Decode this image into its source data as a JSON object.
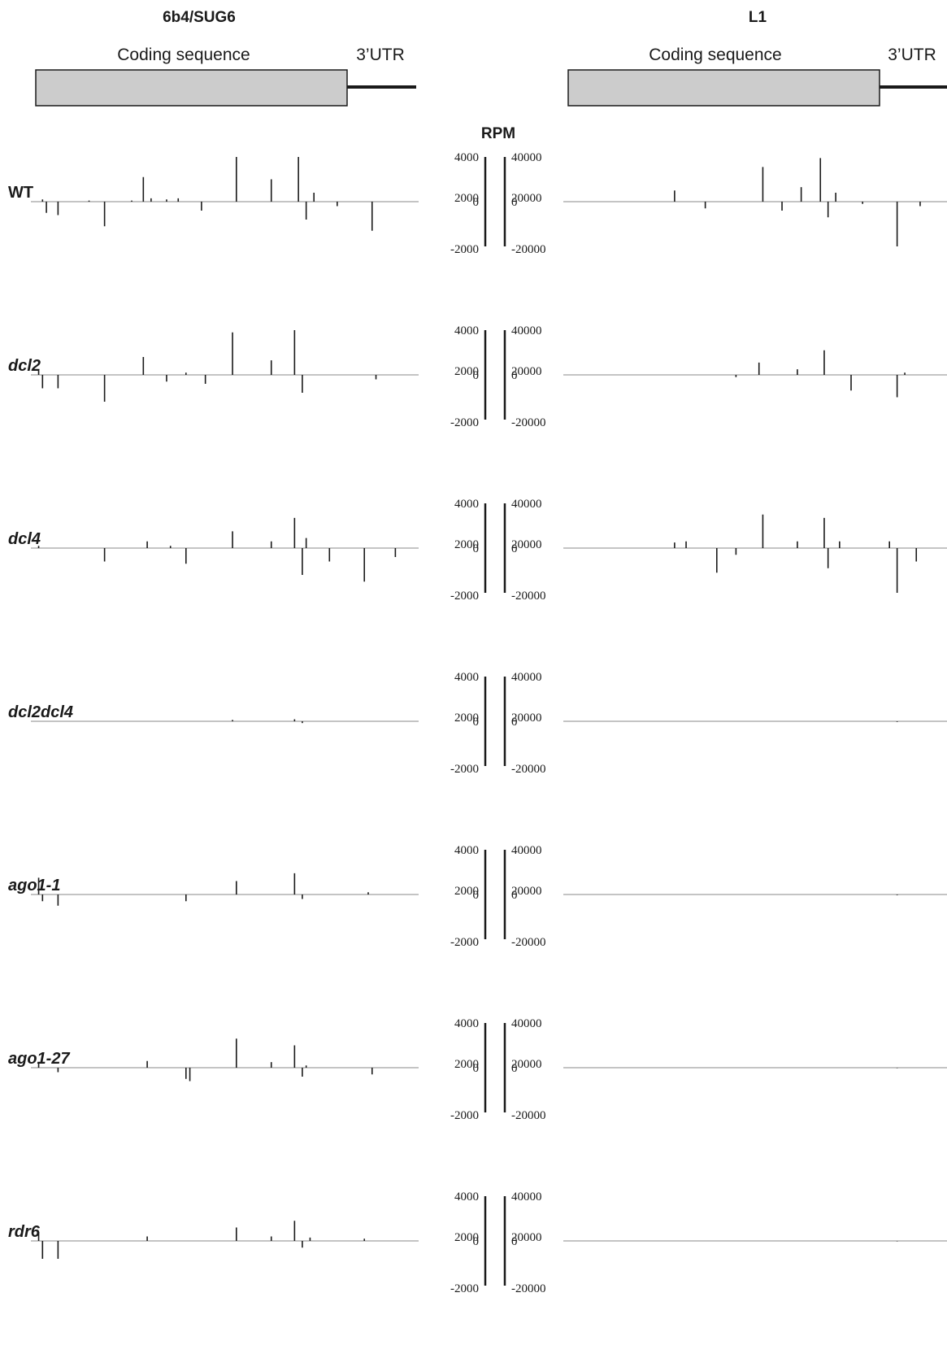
{
  "headers": {
    "left_gene": "6b4/SUG6",
    "right_gene": "L1",
    "cds_label": "Coding sequence",
    "utr_label": "3’UTR",
    "cds_fill": "#cccccc"
  },
  "rpm_label": "RPM",
  "left_axis_ticks": [
    "4000",
    "2000",
    "0",
    "-2000"
  ],
  "right_axis_ticks": [
    "40000",
    "20000",
    "0",
    "-20000"
  ],
  "chart_data": {
    "type": "bar",
    "x_unit": "position along transcript (fraction of panel width)",
    "y_unit": "RPM",
    "left_ylim": [
      -2000,
      4000
    ],
    "right_ylim": [
      -20000,
      40000
    ],
    "trace_color": "#1a1a1a",
    "baseline_color": "#888888",
    "samples": [
      {
        "name": "WT",
        "left": [
          [
            0.03,
            200
          ],
          [
            0.04,
            -500
          ],
          [
            0.07,
            -600
          ],
          [
            0.19,
            -1100
          ],
          [
            0.29,
            2200
          ],
          [
            0.31,
            300
          ],
          [
            0.35,
            200
          ],
          [
            0.38,
            300
          ],
          [
            0.44,
            -400
          ],
          [
            0.53,
            4000
          ],
          [
            0.62,
            2000
          ],
          [
            0.69,
            4000
          ],
          [
            0.71,
            -800
          ],
          [
            0.73,
            800
          ],
          [
            0.88,
            -1300
          ],
          [
            0.79,
            -200
          ],
          [
            0.15,
            100
          ],
          [
            0.26,
            100
          ]
        ],
        "right": [
          [
            0.29,
            10000
          ],
          [
            0.37,
            -3000
          ],
          [
            0.52,
            31000
          ],
          [
            0.57,
            -4000
          ],
          [
            0.62,
            13000
          ],
          [
            0.67,
            39000
          ],
          [
            0.69,
            -7000
          ],
          [
            0.71,
            8000
          ],
          [
            0.87,
            -20000
          ],
          [
            0.93,
            -2000
          ],
          [
            0.78,
            -1000
          ]
        ]
      },
      {
        "name": "dcl2",
        "left": [
          [
            0.02,
            400
          ],
          [
            0.03,
            -600
          ],
          [
            0.07,
            -600
          ],
          [
            0.19,
            -1200
          ],
          [
            0.29,
            1600
          ],
          [
            0.35,
            -300
          ],
          [
            0.45,
            -400
          ],
          [
            0.52,
            3800
          ],
          [
            0.62,
            1300
          ],
          [
            0.68,
            4000
          ],
          [
            0.7,
            -800
          ],
          [
            0.89,
            -200
          ],
          [
            0.4,
            200
          ]
        ],
        "right": [
          [
            0.51,
            11000
          ],
          [
            0.61,
            5000
          ],
          [
            0.68,
            22000
          ],
          [
            0.75,
            -7000
          ],
          [
            0.87,
            -10000
          ],
          [
            0.89,
            2000
          ],
          [
            0.45,
            -1000
          ]
        ]
      },
      {
        "name": "dcl4",
        "left": [
          [
            0.02,
            200
          ],
          [
            0.19,
            -600
          ],
          [
            0.3,
            600
          ],
          [
            0.4,
            -700
          ],
          [
            0.52,
            1500
          ],
          [
            0.62,
            600
          ],
          [
            0.68,
            2700
          ],
          [
            0.7,
            -1200
          ],
          [
            0.71,
            900
          ],
          [
            0.77,
            -600
          ],
          [
            0.86,
            -1500
          ],
          [
            0.94,
            -400
          ],
          [
            0.36,
            200
          ]
        ],
        "right": [
          [
            0.29,
            5000
          ],
          [
            0.32,
            6000
          ],
          [
            0.4,
            -11000
          ],
          [
            0.52,
            30000
          ],
          [
            0.61,
            6000
          ],
          [
            0.68,
            27000
          ],
          [
            0.69,
            -9000
          ],
          [
            0.72,
            6000
          ],
          [
            0.85,
            6000
          ],
          [
            0.87,
            -20000
          ],
          [
            0.92,
            -6000
          ],
          [
            0.45,
            -3000
          ]
        ]
      },
      {
        "name": "dcl2dcl4",
        "left": [
          [
            0.52,
            120
          ],
          [
            0.68,
            180
          ],
          [
            0.7,
            -80
          ]
        ],
        "right": [
          [
            0.87,
            -300
          ]
        ]
      },
      {
        "name": "ago1-1",
        "left": [
          [
            0.02,
            1500
          ],
          [
            0.03,
            -300
          ],
          [
            0.07,
            -500
          ],
          [
            0.4,
            -300
          ],
          [
            0.53,
            1200
          ],
          [
            0.68,
            1900
          ],
          [
            0.7,
            -200
          ],
          [
            0.87,
            200
          ]
        ],
        "right": [
          [
            0.87,
            -300
          ]
        ]
      },
      {
        "name": "ago1-27",
        "left": [
          [
            0.02,
            400
          ],
          [
            0.07,
            -200
          ],
          [
            0.3,
            600
          ],
          [
            0.4,
            -500
          ],
          [
            0.41,
            -600
          ],
          [
            0.53,
            2600
          ],
          [
            0.62,
            500
          ],
          [
            0.68,
            2000
          ],
          [
            0.7,
            -400
          ],
          [
            0.71,
            200
          ],
          [
            0.88,
            -300
          ]
        ],
        "right": [
          [
            0.87,
            -200
          ]
        ]
      },
      {
        "name": "rdr6",
        "left": [
          [
            0.02,
            800
          ],
          [
            0.03,
            -800
          ],
          [
            0.07,
            -800
          ],
          [
            0.3,
            400
          ],
          [
            0.53,
            1200
          ],
          [
            0.62,
            400
          ],
          [
            0.68,
            1800
          ],
          [
            0.7,
            -300
          ],
          [
            0.72,
            300
          ],
          [
            0.86,
            200
          ]
        ],
        "right": [
          [
            0.87,
            -200
          ]
        ]
      }
    ]
  }
}
